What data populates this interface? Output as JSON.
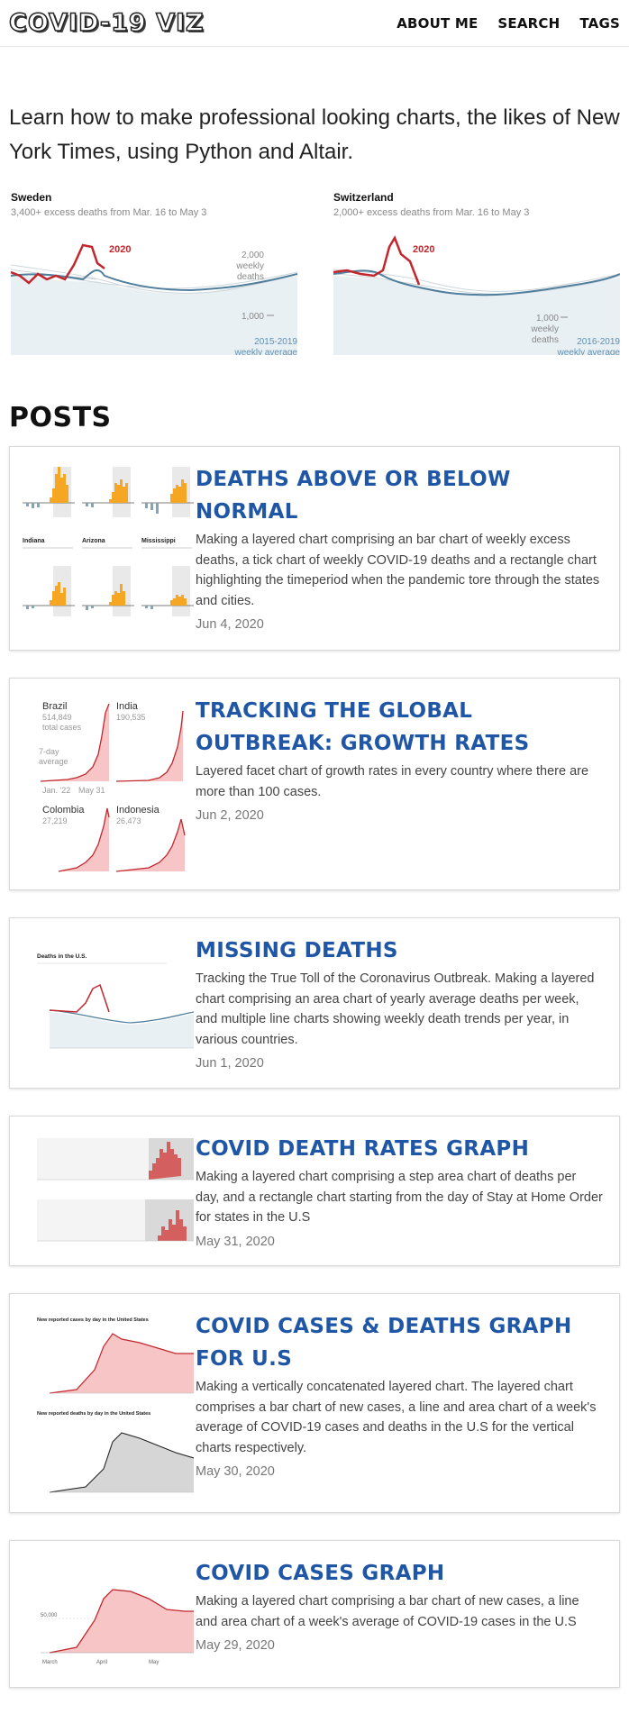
{
  "header": {
    "logo": "COVID-19 VIZ",
    "nav": [
      "ABOUT ME",
      "SEARCH",
      "TAGS"
    ]
  },
  "intro": "Learn how to make professional looking charts, the likes of New York Times, using Python and Altair.",
  "hero_charts": [
    {
      "country": "Sweden",
      "subtitle": "3,400+ excess deaths from Mar. 16 to May 3",
      "highlight": "2020",
      "y_label_top": "2,000",
      "y_label_top2": "weekly",
      "y_label_top3": "deaths",
      "y_label_mid": "1,000",
      "avg_label_1": "2015-2019",
      "avg_label_2": "weekly average",
      "colors": {
        "line_2020": "#c2272d",
        "average": "#4f7f9c",
        "area": "#e8f0f4"
      }
    },
    {
      "country": "Switzerland",
      "subtitle": "2,000+ excess deaths from Mar. 16 to May 3",
      "highlight": "2020",
      "y_label_mid": "1,000",
      "y_label_mid2": "weekly",
      "y_label_mid3": "deaths",
      "avg_label_1": "2016-2019",
      "avg_label_2": "weekly average",
      "colors": {
        "line_2020": "#c2272d",
        "average": "#4f7f9c",
        "area": "#e8f0f4"
      }
    }
  ],
  "posts_heading": "POSTS",
  "posts": [
    {
      "title": "DEATHS ABOVE OR BELOW NORMAL",
      "description": "Making a layered chart comprising an bar chart of weekly excess deaths, a tick chart of weekly COVID-19 deaths and a rectangle chart highlighting the timeperiod when the pandemic tore through the states and cities.",
      "date": "Jun 4, 2020",
      "thumb": {
        "states": [
          "Indiana",
          "Arizona",
          "Mississippi"
        ]
      }
    },
    {
      "title": "TRACKING THE GLOBAL OUTBREAK: GROWTH RATES",
      "description": "Layered facet chart of growth rates in every country where there are more than 100 cases.",
      "date": "Jun 2, 2020",
      "thumb": {
        "panels": [
          {
            "country": "Brazil",
            "cases": "514,849",
            "extra": "total cases"
          },
          {
            "country": "India",
            "cases": "190,535"
          },
          {
            "country": "Colombia",
            "cases": "27,219"
          },
          {
            "country": "Indonesia",
            "cases": "26,473"
          }
        ],
        "avg_1": "7-day",
        "avg_2": "average",
        "x_start": "Jan. '22",
        "x_end": "May 31"
      }
    },
    {
      "title": "MISSING DEATHS",
      "description": "Tracking the True Toll of the Coronavirus Outbreak. Making a layered chart comprising an area chart of yearly average deaths per week, and multiple line charts showing weekly death trends per year, in various countries.",
      "date": "Jun 1, 2020",
      "thumb": {
        "title": "Deaths in the U.S."
      }
    },
    {
      "title": "COVID DEATH RATES GRAPH",
      "description": "Making a layered chart comprising a step area chart of deaths per day, and a rectangle chart starting from the day of Stay at Home Order for states in the U.S",
      "date": "May 31, 2020"
    },
    {
      "title": "COVID CASES & DEATHS GRAPH FOR U.S",
      "description": "Making a vertically concatenated layered chart. The layered chart comprises a bar chart of new cases, a line and area chart of a week's average of COVID-19 cases and deaths in the U.S for the vertical charts respectively.",
      "date": "May 30, 2020",
      "thumb": {
        "title_1": "New reported cases by day in the United States",
        "title_2": "New reported deaths by day in the United States"
      }
    },
    {
      "title": "COVID CASES GRAPH",
      "description": "Making a layered chart comprising a bar chart of new cases, a line and area chart of a week's average of COVID-19 cases in the U.S",
      "date": "May 29, 2020",
      "thumb": {
        "y_tick": "50,000",
        "x_1": "March",
        "x_2": "April",
        "x_3": "May"
      }
    }
  ]
}
